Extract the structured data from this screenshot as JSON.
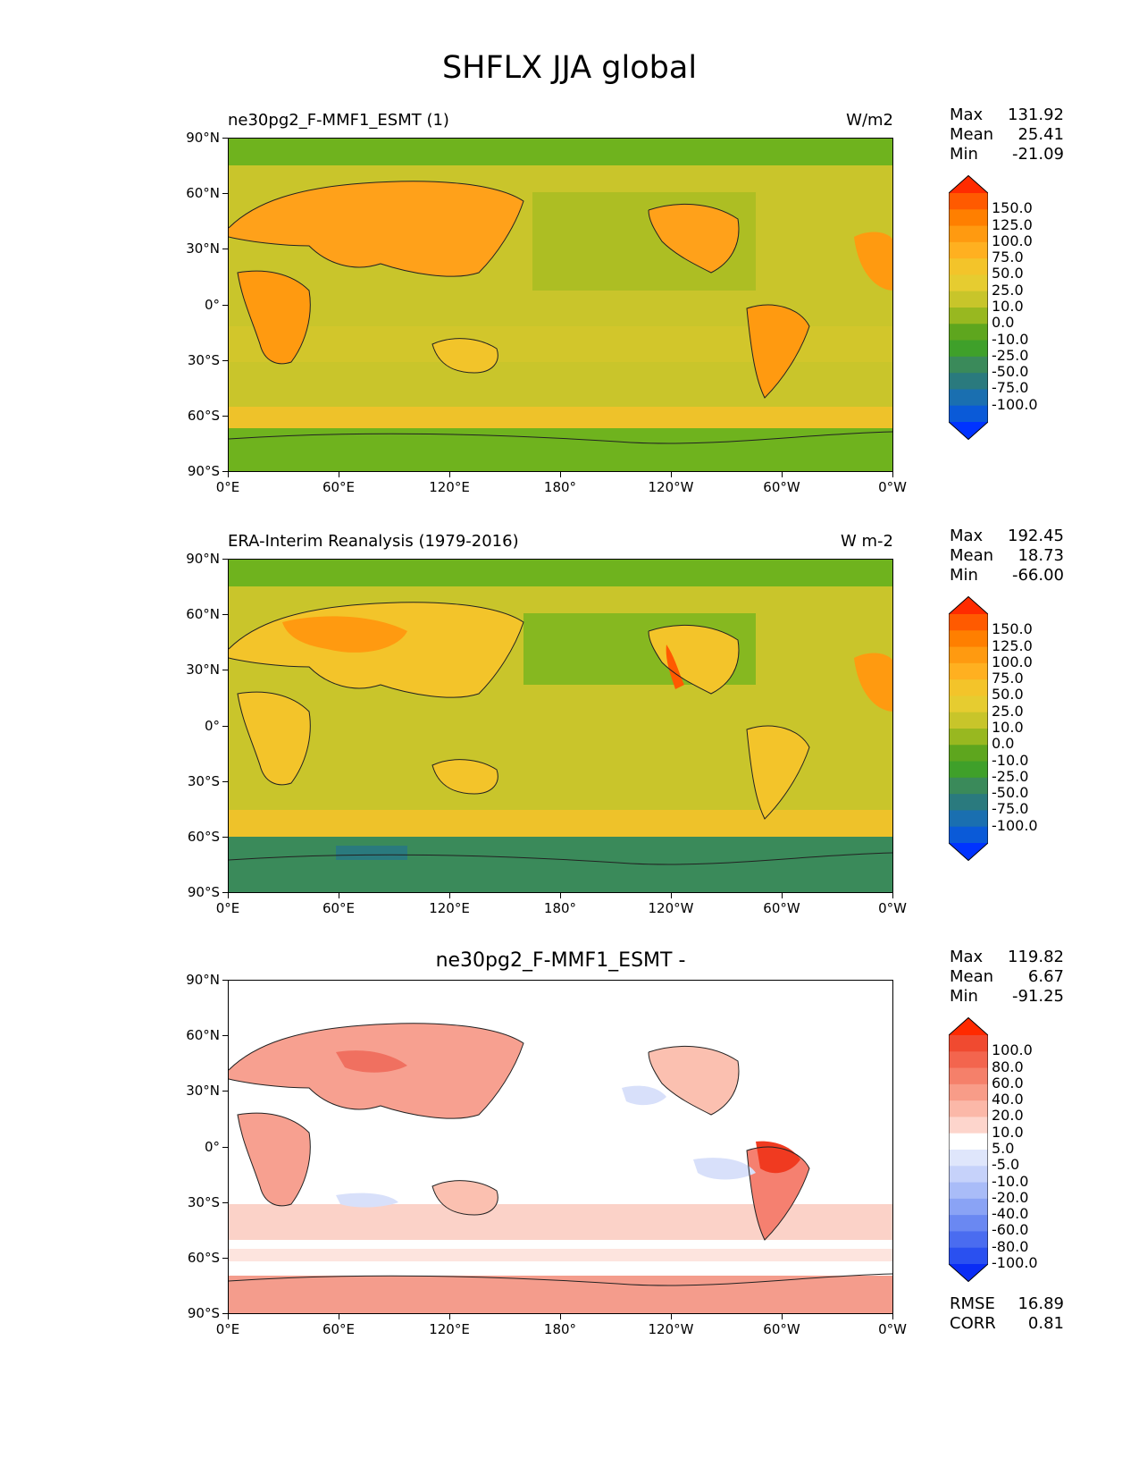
{
  "figure": {
    "title": "SHFLX JJA global"
  },
  "axes": {
    "lat_labels": [
      "90°N",
      "60°N",
      "30°N",
      "0°",
      "30°S",
      "60°S",
      "90°S"
    ],
    "lon_labels": [
      "0°E",
      "60°E",
      "120°E",
      "180°",
      "120°W",
      "60°W",
      "0°W"
    ]
  },
  "panels": [
    {
      "title_left": "ne30pg2_F-MMF1_ESMT (1)",
      "units": "W/m2",
      "stats": [
        {
          "label": "Max",
          "value": "131.92"
        },
        {
          "label": "Mean",
          "value": "25.41"
        },
        {
          "label": "Min",
          "value": "-21.09"
        }
      ],
      "colorbar": {
        "labels": [
          "150.0",
          "125.0",
          "100.0",
          "75.0",
          "50.0",
          "25.0",
          "10.0",
          "0.0",
          "-10.0",
          "-25.0",
          "-50.0",
          "-75.0",
          "-100.0"
        ],
        "colors": [
          "#ff2b00",
          "#ff5a00",
          "#ff7f00",
          "#ff9a10",
          "#ffb020",
          "#f3c42a",
          "#e6cc30",
          "#c8c52a",
          "#98b820",
          "#5ea61e",
          "#3fa02a",
          "#3a8a5a",
          "#2a7a7e",
          "#1a6fb0",
          "#0a5ad8",
          "#0033ff"
        ]
      }
    },
    {
      "title_left": "ERA-Interim Reanalysis (1979-2016)",
      "units": "W m-2",
      "stats": [
        {
          "label": "Max",
          "value": "192.45"
        },
        {
          "label": "Mean",
          "value": "18.73"
        },
        {
          "label": "Min",
          "value": "-66.00"
        }
      ],
      "colorbar": {
        "labels": [
          "150.0",
          "125.0",
          "100.0",
          "75.0",
          "50.0",
          "25.0",
          "10.0",
          "0.0",
          "-10.0",
          "-25.0",
          "-50.0",
          "-75.0",
          "-100.0"
        ],
        "colors": [
          "#ff2b00",
          "#ff5a00",
          "#ff7f00",
          "#ff9a10",
          "#ffb020",
          "#f3c42a",
          "#e6cc30",
          "#c8c52a",
          "#98b820",
          "#5ea61e",
          "#3fa02a",
          "#3a8a5a",
          "#2a7a7e",
          "#1a6fb0",
          "#0a5ad8",
          "#0033ff"
        ]
      }
    },
    {
      "title_center": "ne30pg2_F-MMF1_ESMT -",
      "stats": [
        {
          "label": "Max",
          "value": "119.82"
        },
        {
          "label": "Mean",
          "value": "6.67"
        },
        {
          "label": "Min",
          "value": "-91.25"
        }
      ],
      "colorbar": {
        "labels": [
          "100.0",
          "80.0",
          "60.0",
          "40.0",
          "20.0",
          "10.0",
          "5.0",
          "-5.0",
          "-10.0",
          "-20.0",
          "-40.0",
          "-60.0",
          "-80.0",
          "-100.0"
        ],
        "colors": [
          "#ff2a00",
          "#f04a30",
          "#f3654e",
          "#f5806a",
          "#f89c88",
          "#fbb8a8",
          "#fdd5cc",
          "#ffffff",
          "#dfe6fb",
          "#c6d2fa",
          "#a9bcf8",
          "#8aa3f5",
          "#6a88f2",
          "#4a6cf0",
          "#2a50f0",
          "#0a2cf5"
        ]
      },
      "metrics": [
        {
          "label": "RMSE",
          "value": "16.89"
        },
        {
          "label": "CORR",
          "value": "0.81"
        }
      ]
    }
  ]
}
